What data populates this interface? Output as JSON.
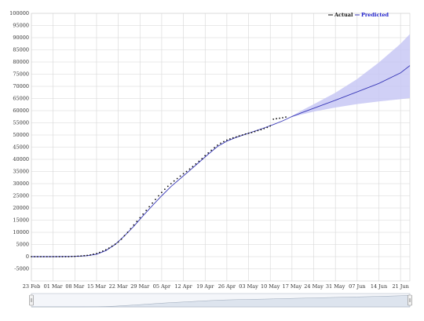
{
  "chart_data": {
    "type": "line",
    "title": "",
    "xlabel": "",
    "ylabel": "",
    "x_range": [
      "2020-02-23",
      "2020-06-24"
    ],
    "ylim": [
      -10000,
      100000
    ],
    "y_ticks": [
      -5000,
      0,
      5000,
      10000,
      15000,
      20000,
      25000,
      30000,
      35000,
      40000,
      45000,
      50000,
      55000,
      60000,
      65000,
      70000,
      75000,
      80000,
      85000,
      90000,
      95000,
      100000
    ],
    "x_tick_labels": [
      {
        "date": "2020-02-23",
        "label": "23 Feb"
      },
      {
        "date": "2020-03-01",
        "label": "01 Mar"
      },
      {
        "date": "2020-03-08",
        "label": "08 Mar"
      },
      {
        "date": "2020-03-15",
        "label": "15 Mar"
      },
      {
        "date": "2020-03-22",
        "label": "22 Mar"
      },
      {
        "date": "2020-03-29",
        "label": "29 Mar"
      },
      {
        "date": "2020-04-05",
        "label": "05 Apr"
      },
      {
        "date": "2020-04-12",
        "label": "12 Apr"
      },
      {
        "date": "2020-04-19",
        "label": "19 Apr"
      },
      {
        "date": "2020-04-26",
        "label": "26 Apr"
      },
      {
        "date": "2020-05-03",
        "label": "03 May"
      },
      {
        "date": "2020-05-10",
        "label": "10 May"
      },
      {
        "date": "2020-05-17",
        "label": "17 May"
      },
      {
        "date": "2020-05-24",
        "label": "24 May"
      },
      {
        "date": "2020-05-31",
        "label": "31 May"
      },
      {
        "date": "2020-06-07",
        "label": "07 Jun"
      },
      {
        "date": "2020-06-14",
        "label": "14 Jun"
      },
      {
        "date": "2020-06-21",
        "label": "21 Jun"
      }
    ],
    "grid": true,
    "legend_position": "top-right",
    "series": [
      {
        "name": "Actual",
        "style": "dots",
        "color": "#111111",
        "points": [
          [
            "2020-02-23",
            0
          ],
          [
            "2020-02-24",
            0
          ],
          [
            "2020-02-25",
            0
          ],
          [
            "2020-02-26",
            0
          ],
          [
            "2020-02-27",
            0
          ],
          [
            "2020-02-28",
            0
          ],
          [
            "2020-02-29",
            0
          ],
          [
            "2020-03-01",
            0
          ],
          [
            "2020-03-02",
            0
          ],
          [
            "2020-03-03",
            0
          ],
          [
            "2020-03-04",
            0
          ],
          [
            "2020-03-05",
            0
          ],
          [
            "2020-03-06",
            0
          ],
          [
            "2020-03-07",
            50
          ],
          [
            "2020-03-08",
            100
          ],
          [
            "2020-03-09",
            200
          ],
          [
            "2020-03-10",
            300
          ],
          [
            "2020-03-11",
            400
          ],
          [
            "2020-03-12",
            500
          ],
          [
            "2020-03-13",
            700
          ],
          [
            "2020-03-14",
            1000
          ],
          [
            "2020-03-15",
            1300
          ],
          [
            "2020-03-16",
            1700
          ],
          [
            "2020-03-17",
            2300
          ],
          [
            "2020-03-18",
            2800
          ],
          [
            "2020-03-19",
            3500
          ],
          [
            "2020-03-20",
            4300
          ],
          [
            "2020-03-21",
            5100
          ],
          [
            "2020-03-22",
            6000
          ],
          [
            "2020-03-23",
            7200
          ],
          [
            "2020-03-24",
            8600
          ],
          [
            "2020-03-25",
            10000
          ],
          [
            "2020-03-26",
            11500
          ],
          [
            "2020-03-27",
            13000
          ],
          [
            "2020-03-28",
            14500
          ],
          [
            "2020-03-29",
            16000
          ],
          [
            "2020-03-30",
            17500
          ],
          [
            "2020-03-31",
            19000
          ],
          [
            "2020-04-01",
            20500
          ],
          [
            "2020-04-02",
            22000
          ],
          [
            "2020-04-03",
            23500
          ],
          [
            "2020-04-04",
            25000
          ],
          [
            "2020-04-05",
            26400
          ],
          [
            "2020-04-06",
            27700
          ],
          [
            "2020-04-07",
            28900
          ],
          [
            "2020-04-08",
            30000
          ],
          [
            "2020-04-09",
            31100
          ],
          [
            "2020-04-10",
            32100
          ],
          [
            "2020-04-11",
            33100
          ],
          [
            "2020-04-12",
            34100
          ],
          [
            "2020-04-13",
            35000
          ],
          [
            "2020-04-14",
            36000
          ],
          [
            "2020-04-15",
            37000
          ],
          [
            "2020-04-16",
            38100
          ],
          [
            "2020-04-17",
            39200
          ],
          [
            "2020-04-18",
            40300
          ],
          [
            "2020-04-19",
            41500
          ],
          [
            "2020-04-20",
            42600
          ],
          [
            "2020-04-21",
            43700
          ],
          [
            "2020-04-22",
            44800
          ],
          [
            "2020-04-23",
            45800
          ],
          [
            "2020-04-24",
            46600
          ],
          [
            "2020-04-25",
            47300
          ],
          [
            "2020-04-26",
            47900
          ],
          [
            "2020-04-27",
            48400
          ],
          [
            "2020-04-28",
            48800
          ],
          [
            "2020-04-29",
            49200
          ],
          [
            "2020-04-30",
            49600
          ],
          [
            "2020-05-01",
            50000
          ],
          [
            "2020-05-02",
            50400
          ],
          [
            "2020-05-03",
            50700
          ],
          [
            "2020-05-04",
            51000
          ],
          [
            "2020-05-05",
            51400
          ],
          [
            "2020-05-06",
            51800
          ],
          [
            "2020-05-07",
            52200
          ],
          [
            "2020-05-08",
            52600
          ],
          [
            "2020-05-09",
            53100
          ],
          [
            "2020-05-10",
            53700
          ],
          [
            "2020-05-11",
            56500
          ],
          [
            "2020-05-12",
            56700
          ],
          [
            "2020-05-13",
            56900
          ],
          [
            "2020-05-14",
            57100
          ],
          [
            "2020-05-15",
            57400
          ]
        ]
      },
      {
        "name": "Predicted",
        "style": "line",
        "color": "#3a3ab8",
        "points": [
          [
            "2020-02-23",
            0
          ],
          [
            "2020-03-01",
            0
          ],
          [
            "2020-03-08",
            100
          ],
          [
            "2020-03-12",
            400
          ],
          [
            "2020-03-15",
            1000
          ],
          [
            "2020-03-18",
            2500
          ],
          [
            "2020-03-21",
            5000
          ],
          [
            "2020-03-24",
            8500
          ],
          [
            "2020-03-27",
            12500
          ],
          [
            "2020-03-30",
            16800
          ],
          [
            "2020-04-02",
            21000
          ],
          [
            "2020-04-05",
            25000
          ],
          [
            "2020-04-08",
            28800
          ],
          [
            "2020-04-11",
            32100
          ],
          [
            "2020-04-14",
            35400
          ],
          [
            "2020-04-17",
            38700
          ],
          [
            "2020-04-20",
            42100
          ],
          [
            "2020-04-23",
            45300
          ],
          [
            "2020-04-26",
            47500
          ],
          [
            "2020-04-29",
            49000
          ],
          [
            "2020-05-02",
            50300
          ],
          [
            "2020-05-05",
            51600
          ],
          [
            "2020-05-08",
            52900
          ],
          [
            "2020-05-11",
            54300
          ],
          [
            "2020-05-14",
            55800
          ],
          [
            "2020-05-17",
            57600
          ],
          [
            "2020-05-20",
            59100
          ],
          [
            "2020-05-24",
            61000
          ],
          [
            "2020-05-31",
            64300
          ],
          [
            "2020-06-07",
            67700
          ],
          [
            "2020-06-14",
            71200
          ],
          [
            "2020-06-21",
            75500
          ],
          [
            "2020-06-24",
            78500
          ]
        ]
      }
    ],
    "prediction_band": {
      "color": "#c8c8f5",
      "points": [
        [
          "2020-05-17",
          57400,
          57800
        ],
        [
          "2020-05-20",
          58400,
          60000
        ],
        [
          "2020-05-24",
          59600,
          62600
        ],
        [
          "2020-05-31",
          61300,
          67400
        ],
        [
          "2020-06-07",
          62700,
          73000
        ],
        [
          "2020-06-14",
          63800,
          79800
        ],
        [
          "2020-06-21",
          64700,
          87500
        ],
        [
          "2020-06-24",
          65200,
          91500
        ]
      ]
    }
  },
  "navigator": {
    "handle_left_icon": "handle-grip-icon",
    "handle_right_icon": "handle-grip-icon",
    "range_selected": [
      "2020-02-23",
      "2020-06-24"
    ]
  }
}
